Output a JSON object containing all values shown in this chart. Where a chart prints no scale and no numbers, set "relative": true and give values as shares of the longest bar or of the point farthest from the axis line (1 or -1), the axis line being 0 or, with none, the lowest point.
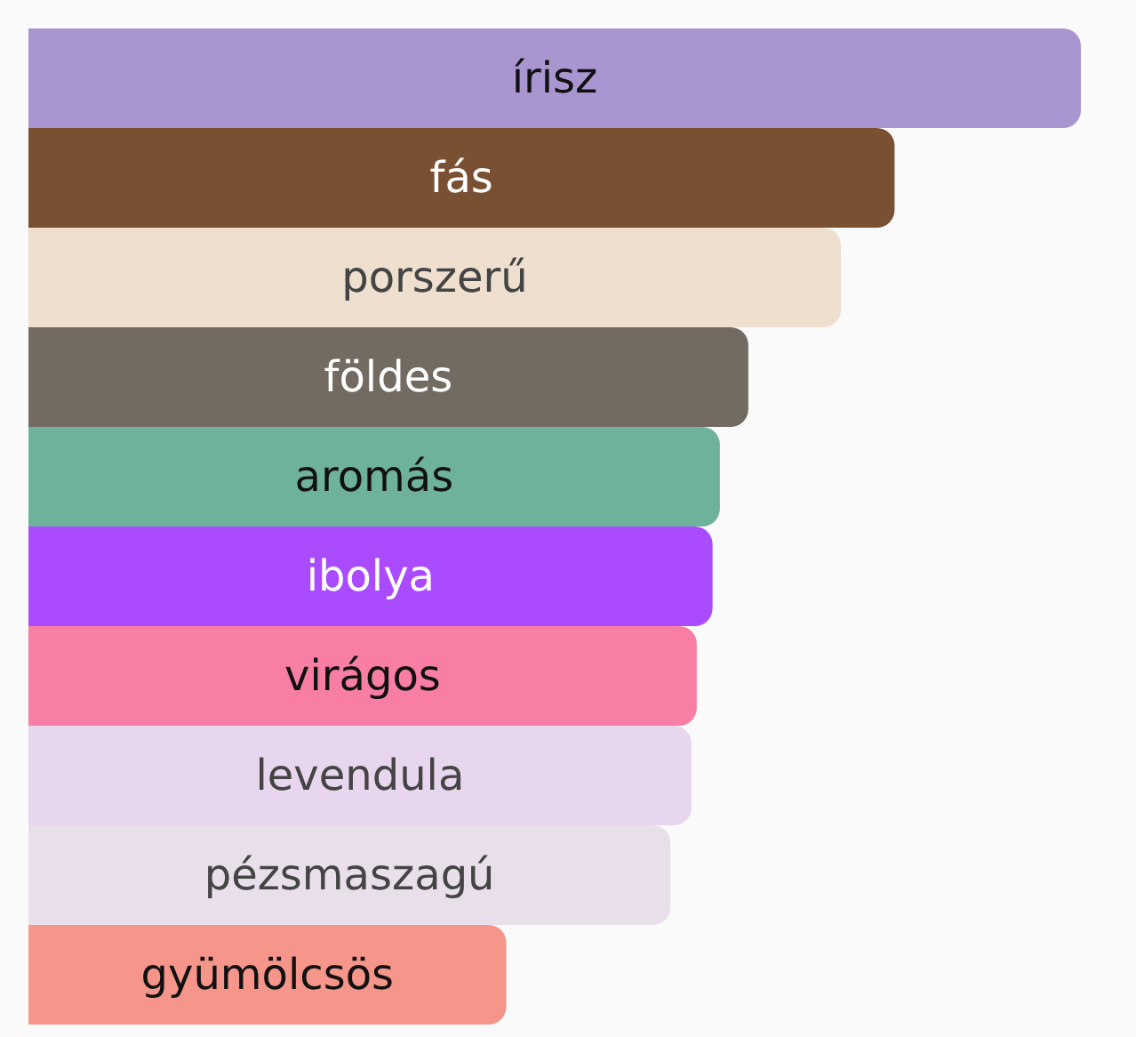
{
  "chart_data": {
    "type": "bar",
    "orientation": "horizontal",
    "relative": true,
    "categories": [
      "írisz",
      "fás",
      "porszerű",
      "földes",
      "aromás",
      "ibolya",
      "virágos",
      "levendula",
      "pézsmaszagú",
      "gyümölcsös"
    ],
    "values": [
      1,
      0.823,
      0.772,
      0.684,
      0.657,
      0.65,
      0.635,
      0.63,
      0.61,
      0.454
    ],
    "colors": [
      "#a996d1",
      "#7a5033",
      "#eedfcf",
      "#736b61",
      "#6fb29c",
      "#aa4bff",
      "#f87ea3",
      "#e8d5ee",
      "#e8dfea",
      "#f6958a"
    ]
  }
}
